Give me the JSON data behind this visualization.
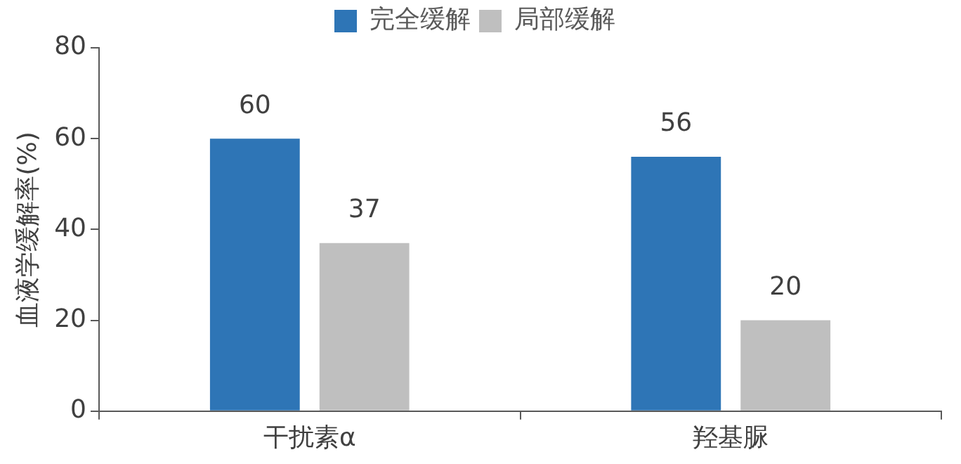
{
  "chart_data": {
    "type": "bar",
    "ylabel": "血液学缓解率(%)",
    "categories": [
      "干扰素α",
      "羟基脲"
    ],
    "series": [
      {
        "name": "完全缓解",
        "color": "#2e75b6",
        "values": [
          60,
          56
        ]
      },
      {
        "name": "局部缓解",
        "color": "#bfbfbf",
        "values": [
          37,
          20
        ]
      }
    ],
    "ylim": [
      0,
      80
    ],
    "yticks": [
      0,
      20,
      40,
      60,
      80
    ],
    "grid": false,
    "legend": "top",
    "data_labels": true
  }
}
